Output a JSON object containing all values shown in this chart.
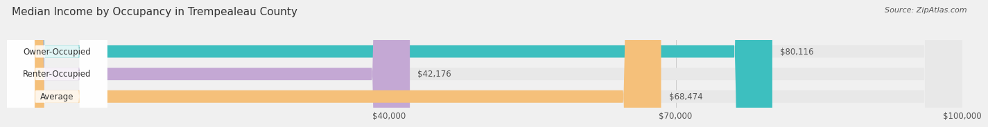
{
  "title": "Median Income by Occupancy in Trempealeau County",
  "source": "Source: ZipAtlas.com",
  "categories": [
    "Owner-Occupied",
    "Renter-Occupied",
    "Average"
  ],
  "values": [
    80116,
    42176,
    68474
  ],
  "bar_colors": [
    "#3dbfbf",
    "#c4a8d4",
    "#f5c07a"
  ],
  "label_texts": [
    "$80,116",
    "$42,176",
    "$68,474"
  ],
  "xlim": [
    0,
    100000
  ],
  "xticks": [
    40000,
    70000,
    100000
  ],
  "xtick_labels": [
    "$40,000",
    "$70,000",
    "$100,000"
  ],
  "bar_height": 0.55,
  "background_color": "#f0f0f0",
  "bar_background_color": "#e8e8e8",
  "title_fontsize": 11,
  "source_fontsize": 8,
  "label_fontsize": 8.5,
  "tick_fontsize": 8.5
}
